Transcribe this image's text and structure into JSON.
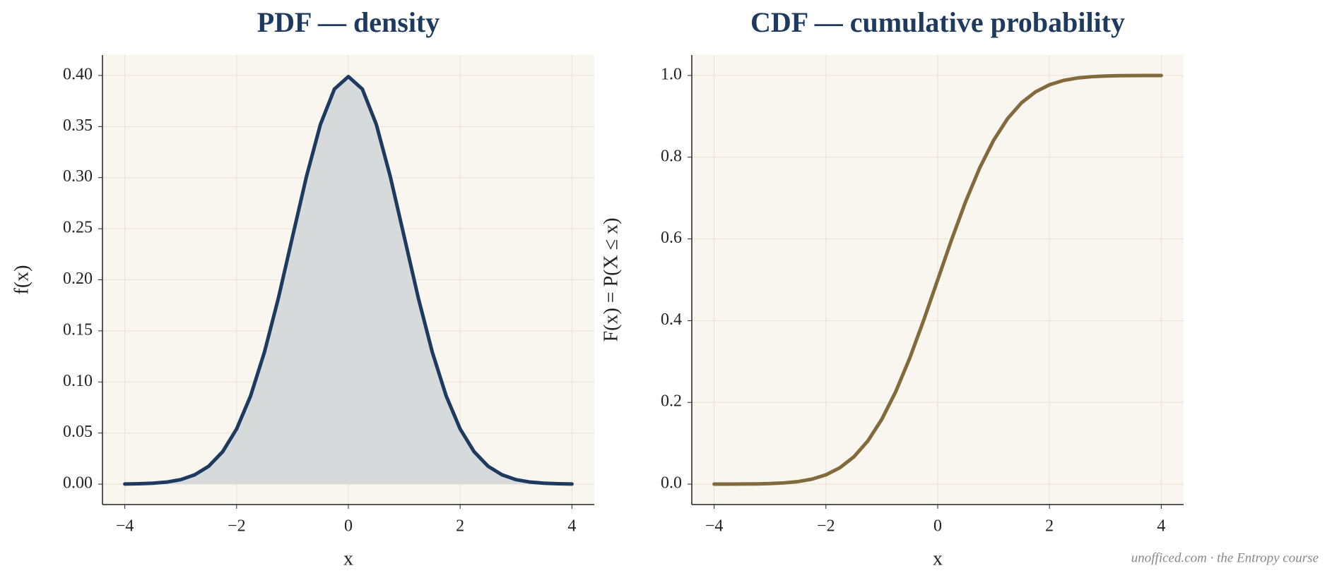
{
  "chart_data": [
    {
      "type": "line",
      "title": "PDF — density",
      "xlabel": "x",
      "ylabel": "f(x)",
      "x": [
        -4,
        -3.75,
        -3.5,
        -3.25,
        -3,
        -2.75,
        -2.5,
        -2.25,
        -2,
        -1.75,
        -1.5,
        -1.25,
        -1,
        -0.75,
        -0.5,
        -0.25,
        0,
        0.25,
        0.5,
        0.75,
        1,
        1.25,
        1.5,
        1.75,
        2,
        2.25,
        2.5,
        2.75,
        3,
        3.25,
        3.5,
        3.75,
        4
      ],
      "series": [
        {
          "color": "#1f3a5f",
          "fill_color": "#d7dadb",
          "values": [
            0.0001,
            0.0004,
            0.0009,
            0.002,
            0.0044,
            0.0091,
            0.0175,
            0.0317,
            0.054,
            0.0863,
            0.1295,
            0.1826,
            0.242,
            0.3011,
            0.3521,
            0.3867,
            0.3989,
            0.3867,
            0.3521,
            0.3011,
            0.242,
            0.1826,
            0.1295,
            0.0863,
            0.054,
            0.0317,
            0.0175,
            0.0091,
            0.0044,
            0.002,
            0.0009,
            0.0004,
            0.0001
          ]
        }
      ],
      "xlim": [
        -4.4,
        4.4
      ],
      "ylim": [
        -0.02,
        0.42
      ],
      "xticks": [
        {
          "value": -4,
          "label": "−4"
        },
        {
          "value": -2,
          "label": "−2"
        },
        0,
        2,
        4
      ],
      "yticks": [
        {
          "value": 0,
          "label": "0.00"
        },
        {
          "value": 0.05,
          "label": "0.05"
        },
        {
          "value": 0.1,
          "label": "0.10"
        },
        {
          "value": 0.15,
          "label": "0.15"
        },
        {
          "value": 0.2,
          "label": "0.20"
        },
        {
          "value": 0.25,
          "label": "0.25"
        },
        {
          "value": 0.3,
          "label": "0.30"
        },
        {
          "value": 0.35,
          "label": "0.35"
        },
        {
          "value": 0.4,
          "label": "0.40"
        }
      ],
      "grid": true
    },
    {
      "type": "line",
      "title": "CDF — cumulative probability",
      "xlabel": "x",
      "ylabel": "F(x) = P(X ≤ x)",
      "x": [
        -4,
        -3.75,
        -3.5,
        -3.25,
        -3,
        -2.75,
        -2.5,
        -2.25,
        -2,
        -1.75,
        -1.5,
        -1.25,
        -1,
        -0.75,
        -0.5,
        -0.25,
        0,
        0.25,
        0.5,
        0.75,
        1,
        1.25,
        1.5,
        1.75,
        2,
        2.25,
        2.5,
        2.75,
        3,
        3.25,
        3.5,
        3.75,
        4
      ],
      "series": [
        {
          "color": "#836a3c",
          "values": [
            0,
            0.0001,
            0.0002,
            0.0006,
            0.0013,
            0.003,
            0.0062,
            0.0122,
            0.0228,
            0.0401,
            0.0668,
            0.1056,
            0.1587,
            0.2266,
            0.3085,
            0.4013,
            0.5,
            0.5987,
            0.6915,
            0.7734,
            0.8413,
            0.8944,
            0.9332,
            0.9599,
            0.9772,
            0.9878,
            0.9938,
            0.997,
            0.9987,
            0.9994,
            0.9998,
            0.9999,
            1
          ]
        }
      ],
      "xlim": [
        -4.4,
        4.4
      ],
      "ylim": [
        -0.05,
        1.05
      ],
      "xticks": [
        {
          "value": -4,
          "label": "−4"
        },
        {
          "value": -2,
          "label": "−2"
        },
        0,
        2,
        4
      ],
      "yticks": [
        {
          "value": 0,
          "label": "0.0"
        },
        {
          "value": 0.2,
          "label": "0.2"
        },
        {
          "value": 0.4,
          "label": "0.4"
        },
        {
          "value": 0.6,
          "label": "0.6"
        },
        {
          "value": 0.8,
          "label": "0.8"
        },
        {
          "value": 1,
          "label": "1.0"
        }
      ],
      "grid": true
    }
  ],
  "watermark": "unofficed.com · the Entropy course"
}
